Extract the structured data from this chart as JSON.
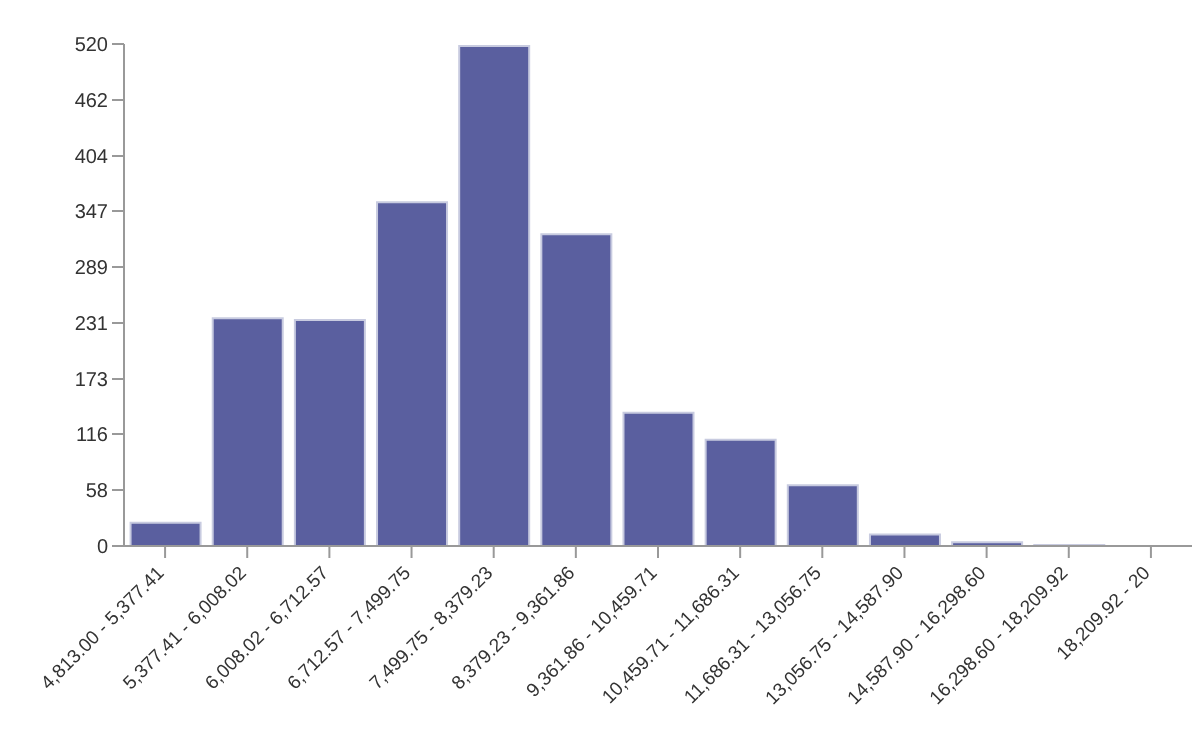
{
  "chart_data": {
    "type": "bar",
    "categories": [
      "4,813.00 - 5,377.41",
      "5,377.41 - 6,008.02",
      "6,008.02 - 6,712.57",
      "6,712.57 - 7,499.75",
      "7,499.75 - 8,379.23",
      "8,379.23 - 9,361.86",
      "9,361.86 - 10,459.71",
      "10,459.71 - 11,686.31",
      "11,686.31 - 13,056.75",
      "13,056.75 - 14,587.90",
      "14,587.90 - 16,298.60",
      "16,298.60 - 18,209.92",
      "18,209.92 - 20"
    ],
    "values": [
      24,
      236,
      234,
      356,
      518,
      323,
      138,
      110,
      63,
      12,
      4,
      1,
      null
    ],
    "color": "#5a5f9f",
    "ylim": [
      0,
      520
    ],
    "yticks": [
      0,
      58,
      116,
      173,
      231,
      289,
      347,
      404,
      462,
      520
    ],
    "grid": false,
    "legend": false
  }
}
